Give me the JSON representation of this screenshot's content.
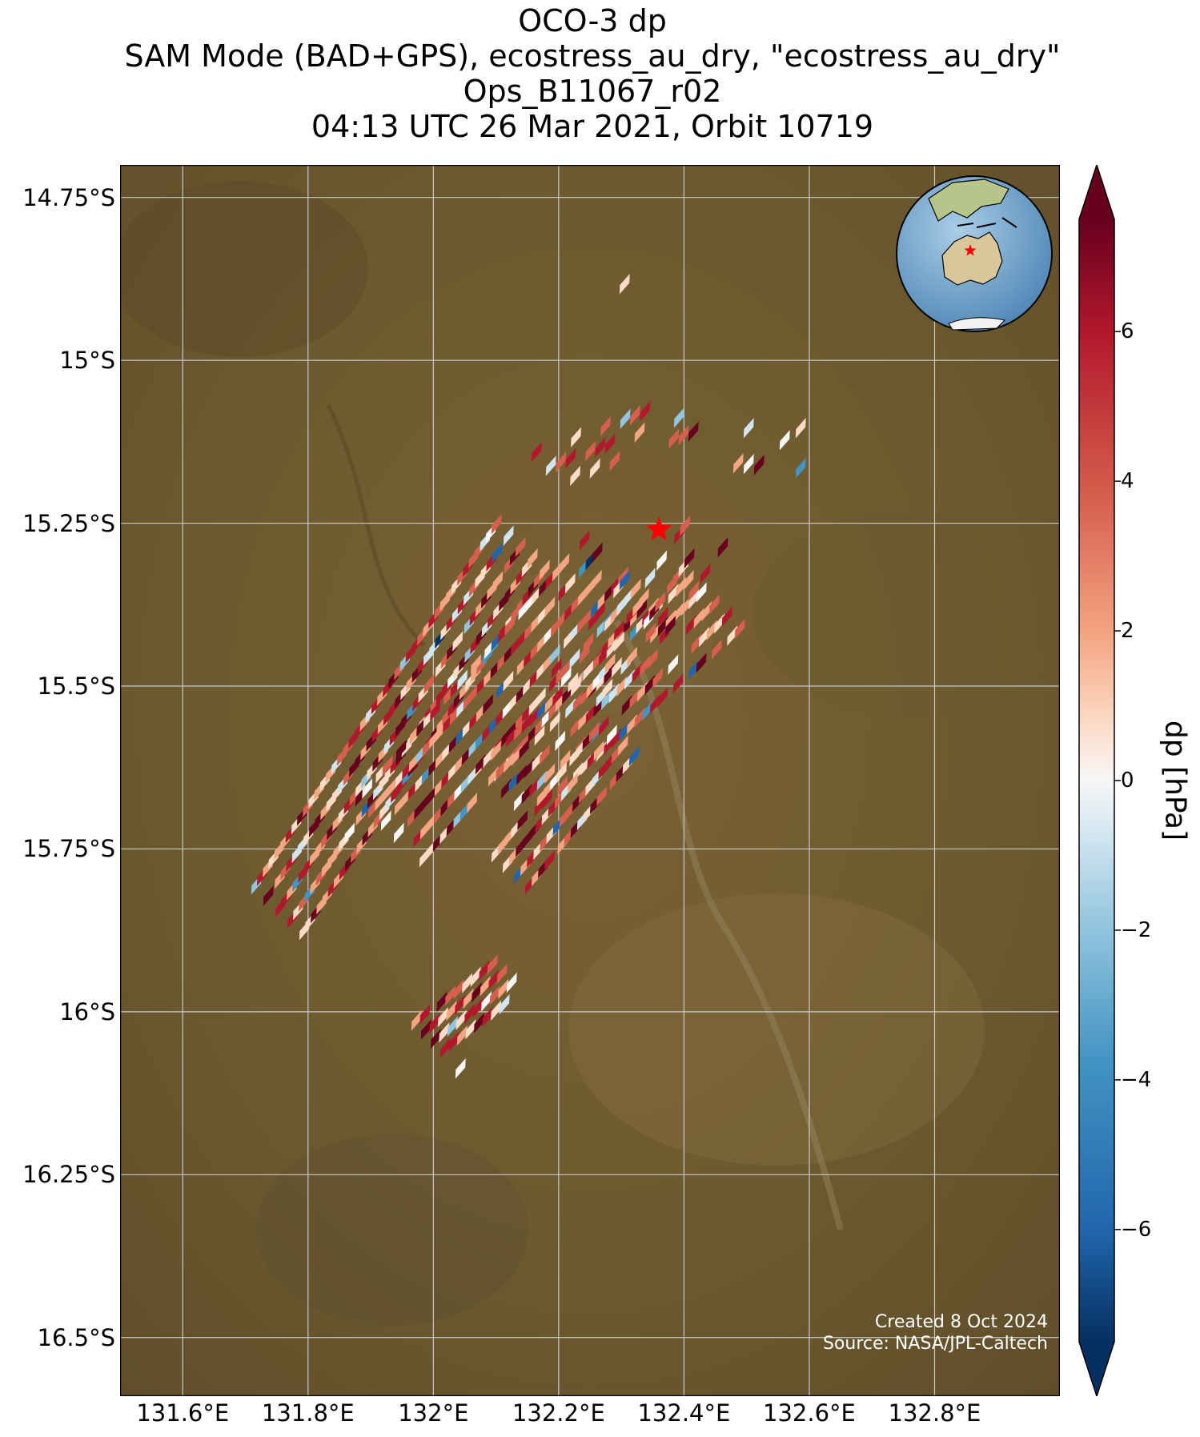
{
  "title": {
    "line1": "OCO-3 dp",
    "line2": "SAM Mode (BAD+GPS), ecostress_au_dry, \"ecostress_au_dry\"",
    "line3": "Ops_B11067_r02",
    "line4": "04:13 UTC 26 Mar 2021, Orbit 10719"
  },
  "map": {
    "lon_range": [
      131.5,
      133.0
    ],
    "lat_range": [
      -16.59,
      -14.7
    ],
    "lat_ticks": [
      {
        "value": -14.75,
        "label": "14.75°S"
      },
      {
        "value": -15.0,
        "label": "15°S"
      },
      {
        "value": -15.25,
        "label": "15.25°S"
      },
      {
        "value": -15.5,
        "label": "15.5°S"
      },
      {
        "value": -15.75,
        "label": "15.75°S"
      },
      {
        "value": -16.0,
        "label": "16°S"
      },
      {
        "value": -16.25,
        "label": "16.25°S"
      },
      {
        "value": -16.5,
        "label": "16.5°S"
      }
    ],
    "lon_ticks": [
      {
        "value": 131.6,
        "label": "131.6°E"
      },
      {
        "value": 131.8,
        "label": "131.8°E"
      },
      {
        "value": 132.0,
        "label": "132°E"
      },
      {
        "value": 132.2,
        "label": "132.2°E"
      },
      {
        "value": 132.4,
        "label": "132.4°E"
      },
      {
        "value": 132.6,
        "label": "132.6°E"
      },
      {
        "value": 132.8,
        "label": "132.8°E"
      }
    ],
    "gridlines": true,
    "target_marker": {
      "lon": 132.36,
      "lat": -15.26,
      "color": "#ff0000",
      "icon": "star-icon"
    },
    "inset_globe": {
      "placement": "top-right",
      "marker": "star-icon"
    }
  },
  "colorbar": {
    "label": "dp [hPa]",
    "range": [
      -7.5,
      7.5
    ],
    "ticks": [
      {
        "value": 6,
        "label": "6"
      },
      {
        "value": 4,
        "label": "4"
      },
      {
        "value": 2,
        "label": "2"
      },
      {
        "value": 0,
        "label": "0"
      },
      {
        "value": -2,
        "label": "−2"
      },
      {
        "value": -4,
        "label": "−4"
      },
      {
        "value": -6,
        "label": "−6"
      }
    ],
    "colormap": "RdBu_r",
    "extend": "both"
  },
  "credits": {
    "created": "Created 8 Oct 2024",
    "source": "Source: NASA/JPL-Caltech"
  }
}
